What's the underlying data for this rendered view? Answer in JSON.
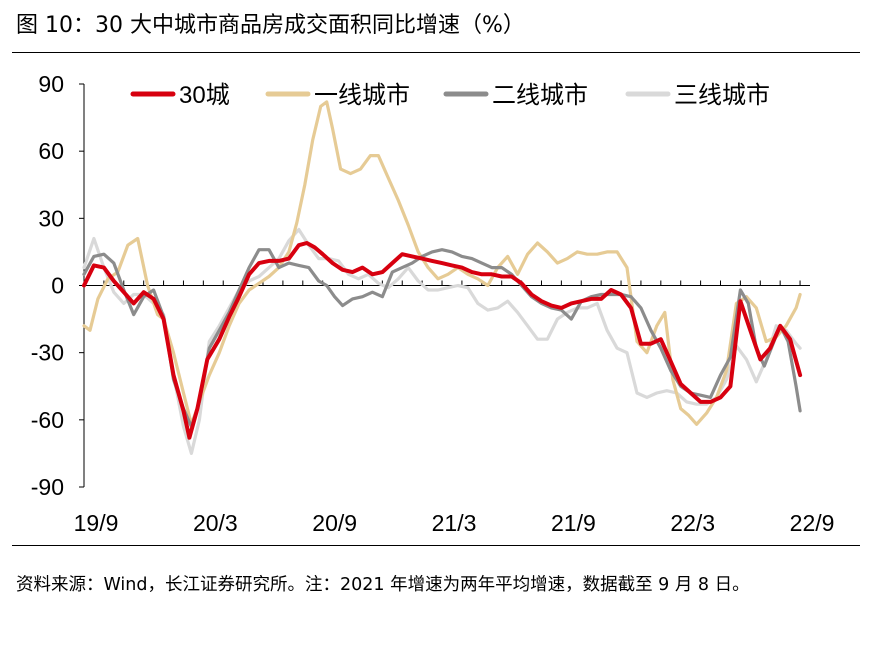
{
  "figure": {
    "title": "图 10：30 大中城市商品房成交面积同比增速（%）",
    "source": "资料来源：Wind，长江证券研究所。注：2021 年增速为两年平均增速，数据截至 9 月 8 日。"
  },
  "chart_data": {
    "type": "line",
    "title": "30 大中城市商品房成交面积同比增速（%）",
    "xlabel": "",
    "ylabel": "",
    "ylim": [
      -90,
      90
    ],
    "yticks": [
      "90",
      "60",
      "30",
      "0",
      "-30",
      "-60",
      "-90"
    ],
    "ytick_values": [
      90,
      60,
      30,
      0,
      -30,
      -60,
      -90
    ],
    "xticks": [
      "19/9",
      "20/3",
      "20/9",
      "21/3",
      "21/9",
      "22/3",
      "22/9"
    ],
    "xtick_positions": [
      0,
      6,
      12,
      18,
      24,
      30,
      36
    ],
    "xrange": [
      0,
      36.5
    ],
    "legend_position": "top",
    "series": [
      {
        "name": "30城",
        "color": "#D7000F",
        "points": [
          [
            0,
            0
          ],
          [
            0.5,
            9
          ],
          [
            1,
            8
          ],
          [
            1.5,
            2
          ],
          [
            2,
            -3
          ],
          [
            2.5,
            -8
          ],
          [
            3,
            -3
          ],
          [
            3.5,
            -6
          ],
          [
            4,
            -15
          ],
          [
            4.5,
            -40
          ],
          [
            5,
            -56
          ],
          [
            5.3,
            -68
          ],
          [
            5.7,
            -55
          ],
          [
            6.2,
            -33
          ],
          [
            6.8,
            -24
          ],
          [
            7.3,
            -14
          ],
          [
            7.8,
            -5
          ],
          [
            8.3,
            5
          ],
          [
            8.8,
            10
          ],
          [
            9.3,
            11
          ],
          [
            9.8,
            11
          ],
          [
            10.3,
            12
          ],
          [
            10.8,
            18
          ],
          [
            11.2,
            19
          ],
          [
            11.6,
            17
          ],
          [
            12,
            14
          ],
          [
            12.5,
            10
          ],
          [
            13,
            7
          ],
          [
            13.5,
            6
          ],
          [
            14,
            8
          ],
          [
            14.5,
            5
          ],
          [
            15,
            6
          ],
          [
            15.5,
            10
          ],
          [
            16,
            14
          ],
          [
            16.5,
            13
          ],
          [
            17,
            12
          ],
          [
            17.5,
            11
          ],
          [
            18,
            10
          ],
          [
            18.5,
            9
          ],
          [
            19,
            8
          ],
          [
            19.5,
            6
          ],
          [
            20,
            5
          ],
          [
            20.5,
            5
          ],
          [
            21,
            4
          ],
          [
            21.5,
            4
          ],
          [
            22,
            1
          ],
          [
            22.5,
            -4
          ],
          [
            23,
            -7
          ],
          [
            23.5,
            -9
          ],
          [
            24,
            -10
          ],
          [
            24.5,
            -8
          ],
          [
            25,
            -7
          ],
          [
            25.5,
            -6
          ],
          [
            26,
            -6
          ],
          [
            26.5,
            -2
          ],
          [
            27,
            -4
          ],
          [
            27.5,
            -10
          ],
          [
            28,
            -26
          ],
          [
            28.5,
            -26
          ],
          [
            29,
            -24
          ],
          [
            29.5,
            -34
          ],
          [
            30,
            -44
          ],
          [
            30.5,
            -48
          ],
          [
            31,
            -52
          ],
          [
            31.5,
            -52
          ],
          [
            32,
            -50
          ],
          [
            32.5,
            -45
          ],
          [
            33,
            -7
          ],
          [
            33.5,
            -20
          ],
          [
            34,
            -33
          ],
          [
            34.5,
            -28
          ],
          [
            35,
            -18
          ],
          [
            35.5,
            -24
          ],
          [
            36,
            -40
          ]
        ]
      },
      {
        "name": "一线城市",
        "color": "#E6CB95",
        "points": [
          [
            0,
            -18
          ],
          [
            0.3,
            -20
          ],
          [
            0.7,
            -6
          ],
          [
            1.2,
            3
          ],
          [
            1.7,
            6
          ],
          [
            2.2,
            18
          ],
          [
            2.7,
            21
          ],
          [
            3.2,
            0
          ],
          [
            3.7,
            -13
          ],
          [
            4,
            -15
          ],
          [
            4.5,
            -30
          ],
          [
            5,
            -48
          ],
          [
            5.4,
            -62
          ],
          [
            5.8,
            -52
          ],
          [
            6.3,
            -40
          ],
          [
            6.8,
            -30
          ],
          [
            7.3,
            -18
          ],
          [
            7.8,
            -8
          ],
          [
            8.3,
            -2
          ],
          [
            8.8,
            1
          ],
          [
            9.3,
            4
          ],
          [
            9.8,
            8
          ],
          [
            10.3,
            15
          ],
          [
            10.7,
            28
          ],
          [
            11.1,
            45
          ],
          [
            11.5,
            65
          ],
          [
            11.9,
            80
          ],
          [
            12.2,
            82
          ],
          [
            12.5,
            70
          ],
          [
            12.9,
            52
          ],
          [
            13.4,
            50
          ],
          [
            13.9,
            52
          ],
          [
            14.4,
            58
          ],
          [
            14.8,
            58
          ],
          [
            15.3,
            48
          ],
          [
            15.8,
            38
          ],
          [
            16.3,
            27
          ],
          [
            16.8,
            15
          ],
          [
            17.3,
            8
          ],
          [
            17.8,
            3
          ],
          [
            18.3,
            5
          ],
          [
            18.8,
            8
          ],
          [
            19.3,
            5
          ],
          [
            19.8,
            3
          ],
          [
            20.3,
            0
          ],
          [
            20.8,
            8
          ],
          [
            21.3,
            13
          ],
          [
            21.8,
            5
          ],
          [
            22.3,
            14
          ],
          [
            22.8,
            19
          ],
          [
            23.3,
            15
          ],
          [
            23.8,
            10
          ],
          [
            24.3,
            12
          ],
          [
            24.8,
            15
          ],
          [
            25.3,
            14
          ],
          [
            25.8,
            14
          ],
          [
            26.3,
            15
          ],
          [
            26.8,
            15
          ],
          [
            27.3,
            8
          ],
          [
            27.8,
            -25
          ],
          [
            28.3,
            -30
          ],
          [
            28.8,
            -18
          ],
          [
            29.2,
            -12
          ],
          [
            29.6,
            -42
          ],
          [
            30,
            -55
          ],
          [
            30.4,
            -58
          ],
          [
            30.8,
            -62
          ],
          [
            31.3,
            -57
          ],
          [
            31.8,
            -50
          ],
          [
            32.3,
            -38
          ],
          [
            32.8,
            -8
          ],
          [
            33.3,
            -5
          ],
          [
            33.8,
            -10
          ],
          [
            34.3,
            -25
          ],
          [
            34.8,
            -23
          ],
          [
            35.3,
            -18
          ],
          [
            35.8,
            -10
          ],
          [
            36,
            -4
          ]
        ]
      },
      {
        "name": "二线城市",
        "color": "#8C8C8C",
        "points": [
          [
            0,
            5
          ],
          [
            0.5,
            13
          ],
          [
            1,
            14
          ],
          [
            1.5,
            10
          ],
          [
            2,
            -2
          ],
          [
            2.5,
            -13
          ],
          [
            3,
            -5
          ],
          [
            3.5,
            -2
          ],
          [
            4,
            -14
          ],
          [
            4.5,
            -42
          ],
          [
            5,
            -55
          ],
          [
            5.4,
            -63
          ],
          [
            5.8,
            -52
          ],
          [
            6.3,
            -28
          ],
          [
            6.8,
            -20
          ],
          [
            7.3,
            -12
          ],
          [
            7.8,
            -2
          ],
          [
            8.3,
            8
          ],
          [
            8.8,
            16
          ],
          [
            9.3,
            16
          ],
          [
            9.8,
            8
          ],
          [
            10.3,
            10
          ],
          [
            10.8,
            9
          ],
          [
            11.3,
            8
          ],
          [
            11.8,
            2
          ],
          [
            12.2,
            0
          ],
          [
            12.6,
            -5
          ],
          [
            13,
            -9
          ],
          [
            13.5,
            -6
          ],
          [
            14,
            -5
          ],
          [
            14.5,
            -3
          ],
          [
            15,
            -5
          ],
          [
            15.5,
            6
          ],
          [
            16,
            8
          ],
          [
            16.5,
            10
          ],
          [
            17,
            13
          ],
          [
            17.5,
            15
          ],
          [
            18,
            16
          ],
          [
            18.5,
            15
          ],
          [
            19,
            13
          ],
          [
            19.5,
            12
          ],
          [
            20,
            10
          ],
          [
            20.5,
            8
          ],
          [
            21,
            8
          ],
          [
            21.5,
            5
          ],
          [
            22,
            0
          ],
          [
            22.5,
            -5
          ],
          [
            23,
            -8
          ],
          [
            23.5,
            -10
          ],
          [
            24,
            -11
          ],
          [
            24.5,
            -15
          ],
          [
            25,
            -7
          ],
          [
            25.5,
            -5
          ],
          [
            26,
            -4
          ],
          [
            26.5,
            -4
          ],
          [
            27,
            -4
          ],
          [
            27.5,
            -5
          ],
          [
            28,
            -10
          ],
          [
            28.5,
            -20
          ],
          [
            29,
            -28
          ],
          [
            29.5,
            -38
          ],
          [
            30,
            -45
          ],
          [
            30.5,
            -48
          ],
          [
            31,
            -49
          ],
          [
            31.5,
            -50
          ],
          [
            32,
            -40
          ],
          [
            32.5,
            -32
          ],
          [
            33,
            -2
          ],
          [
            33.4,
            -8
          ],
          [
            33.8,
            -28
          ],
          [
            34.2,
            -36
          ],
          [
            34.6,
            -27
          ],
          [
            35,
            -18
          ],
          [
            35.4,
            -25
          ],
          [
            35.8,
            -45
          ],
          [
            36,
            -56
          ]
        ]
      },
      {
        "name": "三线城市",
        "color": "#D9D9D9",
        "points": [
          [
            0,
            8
          ],
          [
            0.5,
            21
          ],
          [
            1,
            8
          ],
          [
            1.5,
            -3
          ],
          [
            2,
            -8
          ],
          [
            2.5,
            -4
          ],
          [
            3,
            -4
          ],
          [
            3.5,
            -8
          ],
          [
            4,
            -13
          ],
          [
            4.5,
            -40
          ],
          [
            5,
            -63
          ],
          [
            5.4,
            -75
          ],
          [
            5.8,
            -60
          ],
          [
            6.3,
            -25
          ],
          [
            6.8,
            -18
          ],
          [
            7.3,
            -10
          ],
          [
            7.8,
            -2
          ],
          [
            8.3,
            2
          ],
          [
            8.8,
            4
          ],
          [
            9.3,
            8
          ],
          [
            9.8,
            12
          ],
          [
            10.3,
            20
          ],
          [
            10.8,
            25
          ],
          [
            11.3,
            18
          ],
          [
            11.8,
            12
          ],
          [
            12.3,
            12
          ],
          [
            12.8,
            11
          ],
          [
            13.3,
            5
          ],
          [
            13.8,
            3
          ],
          [
            14.3,
            5
          ],
          [
            14.8,
            1
          ],
          [
            15.3,
            -1
          ],
          [
            15.8,
            3
          ],
          [
            16.3,
            8
          ],
          [
            16.8,
            2
          ],
          [
            17.3,
            -2
          ],
          [
            17.8,
            -2
          ],
          [
            18.3,
            -1
          ],
          [
            18.8,
            0
          ],
          [
            19.3,
            -1
          ],
          [
            19.8,
            -8
          ],
          [
            20.3,
            -11
          ],
          [
            20.8,
            -10
          ],
          [
            21.3,
            -7
          ],
          [
            21.8,
            -12
          ],
          [
            22.3,
            -18
          ],
          [
            22.8,
            -24
          ],
          [
            23.3,
            -24
          ],
          [
            23.8,
            -15
          ],
          [
            24.3,
            -12
          ],
          [
            24.8,
            -10
          ],
          [
            25.3,
            -10
          ],
          [
            25.8,
            -8
          ],
          [
            26.3,
            -20
          ],
          [
            26.8,
            -28
          ],
          [
            27.3,
            -30
          ],
          [
            27.8,
            -48
          ],
          [
            28.3,
            -50
          ],
          [
            28.8,
            -48
          ],
          [
            29.3,
            -47
          ],
          [
            29.8,
            -48
          ],
          [
            30.3,
            -52
          ],
          [
            30.8,
            -53
          ],
          [
            31.3,
            -53
          ],
          [
            31.8,
            -50
          ],
          [
            32.3,
            -42
          ],
          [
            32.8,
            -27
          ],
          [
            33.3,
            -33
          ],
          [
            33.8,
            -43
          ],
          [
            34.3,
            -33
          ],
          [
            34.8,
            -18
          ],
          [
            35.3,
            -20
          ],
          [
            35.8,
            -26
          ],
          [
            36,
            -28
          ]
        ]
      }
    ]
  }
}
